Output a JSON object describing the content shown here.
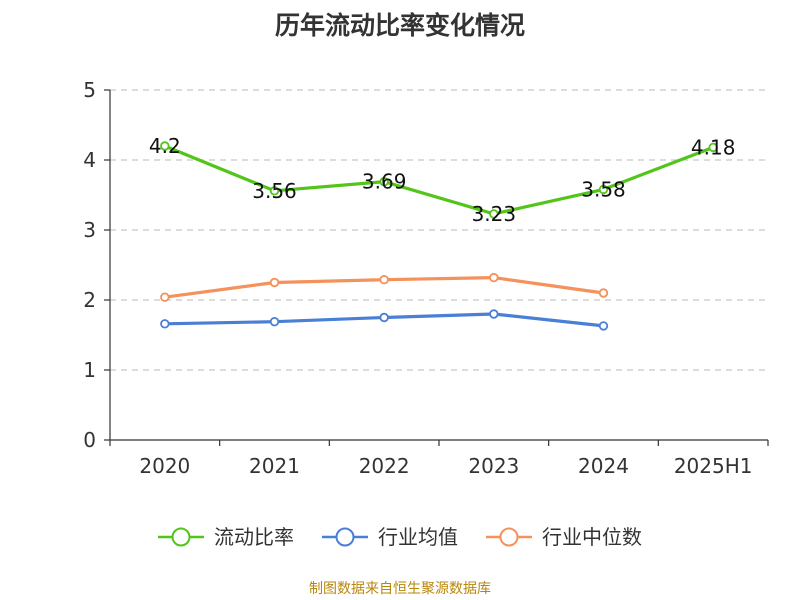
{
  "chart_data": {
    "type": "line",
    "title": "历年流动比率变化情况",
    "xlabel": "",
    "ylabel": "",
    "categories": [
      "2020",
      "2021",
      "2022",
      "2023",
      "2024",
      "2025H1"
    ],
    "ylim": [
      0,
      5
    ],
    "yticks": [
      0,
      1,
      2,
      3,
      4,
      5
    ],
    "grid": true,
    "legend_position": "bottom",
    "series": [
      {
        "name": "流动比率",
        "color": "#52c41a",
        "values": [
          4.2,
          3.56,
          3.69,
          3.23,
          3.58,
          4.18
        ],
        "labels": [
          "4.2",
          "3.56",
          "3.69",
          "3.23",
          "3.58",
          "4.18"
        ]
      },
      {
        "name": "行业均值",
        "color": "#4a7fd6",
        "values": [
          1.66,
          1.69,
          1.75,
          1.8,
          1.63,
          null
        ]
      },
      {
        "name": "行业中位数",
        "color": "#f5915a",
        "values": [
          2.04,
          2.25,
          2.29,
          2.32,
          2.1,
          null
        ]
      }
    ]
  },
  "source": "制图数据来自恒生聚源数据库"
}
